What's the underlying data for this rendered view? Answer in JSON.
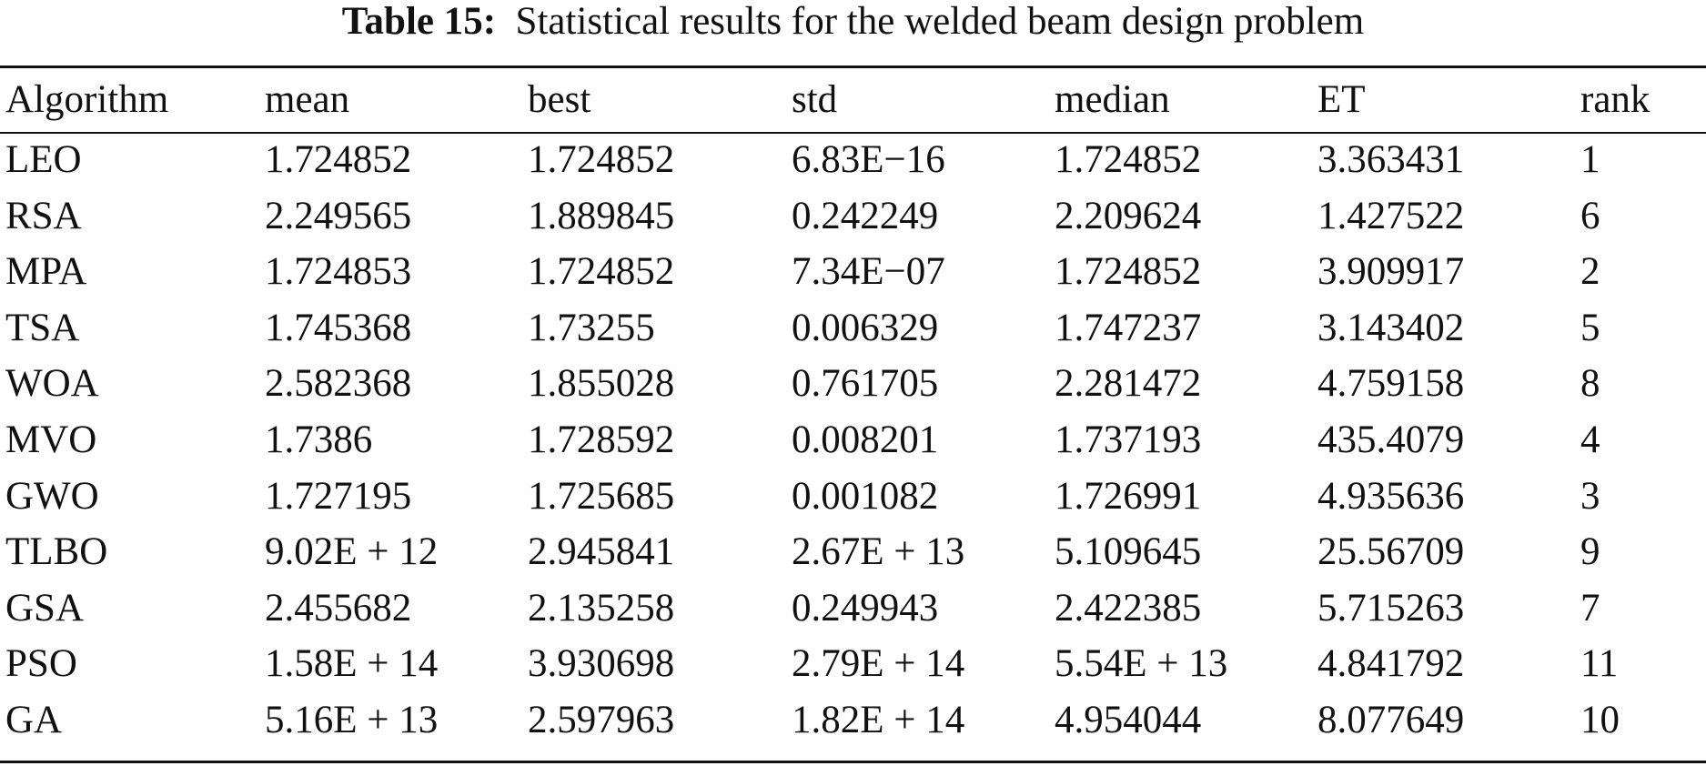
{
  "caption": {
    "label": "Table 15:",
    "text": "Statistical results for the welded beam design problem"
  },
  "table": {
    "headers": [
      "Algorithm",
      "mean",
      "best",
      "std",
      "median",
      "ET",
      "rank"
    ],
    "rows": [
      [
        "LEO",
        "1.724852",
        "1.724852",
        "6.83E−16",
        "1.724852",
        "3.363431",
        "1"
      ],
      [
        "RSA",
        "2.249565",
        "1.889845",
        "0.242249",
        "2.209624",
        "1.427522",
        "6"
      ],
      [
        "MPA",
        "1.724853",
        "1.724852",
        "7.34E−07",
        "1.724852",
        "3.909917",
        "2"
      ],
      [
        "TSA",
        "1.745368",
        "1.73255",
        "0.006329",
        "1.747237",
        "3.143402",
        "5"
      ],
      [
        "WOA",
        "2.582368",
        "1.855028",
        "0.761705",
        "2.281472",
        "4.759158",
        "8"
      ],
      [
        "MVO",
        "1.7386",
        "1.728592",
        "0.008201",
        "1.737193",
        "435.4079",
        "4"
      ],
      [
        "GWO",
        "1.727195",
        "1.725685",
        "0.001082",
        "1.726991",
        "4.935636",
        "3"
      ],
      [
        "TLBO",
        "9.02E + 12",
        "2.945841",
        "2.67E + 13",
        "5.109645",
        "25.56709",
        "9"
      ],
      [
        "GSA",
        "2.455682",
        "2.135258",
        "0.249943",
        "2.422385",
        "5.715263",
        "7"
      ],
      [
        "PSO",
        "1.58E + 14",
        "3.930698",
        "2.79E + 14",
        "5.54E + 13",
        "4.841792",
        "11"
      ],
      [
        "GA",
        "5.16E + 13",
        "2.597963",
        "1.82E + 14",
        "4.954044",
        "8.077649",
        "10"
      ]
    ]
  }
}
